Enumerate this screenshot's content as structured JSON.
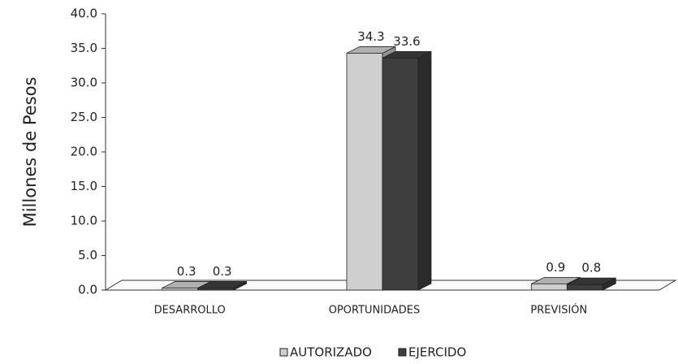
{
  "chart_data": {
    "type": "bar3d",
    "y_label": "Millones de Pesos",
    "categories": [
      "DESARROLLO",
      "OPORTUNIDADES",
      "PREVISIÓN"
    ],
    "series": [
      {
        "name": "AUTORIZADO",
        "color": "#cfcfcf",
        "values": [
          0.3,
          34.3,
          0.9
        ]
      },
      {
        "name": "EJERCIDO",
        "color": "#3e3e3e",
        "values": [
          0.3,
          33.6,
          0.8
        ]
      }
    ],
    "ylim": [
      0,
      40
    ],
    "yticks": [
      {
        "value": 0,
        "label": "0.0"
      },
      {
        "value": 5,
        "label": "5.0"
      },
      {
        "value": 10,
        "label": "10.0"
      },
      {
        "value": 15,
        "label": "15.0"
      },
      {
        "value": 20,
        "label": "20.0"
      },
      {
        "value": 25,
        "label": "25.0"
      },
      {
        "value": 30,
        "label": "30.0"
      },
      {
        "value": 35,
        "label": "35.0"
      },
      {
        "value": 40,
        "label": "40.0"
      }
    ],
    "legend": "bottom"
  }
}
